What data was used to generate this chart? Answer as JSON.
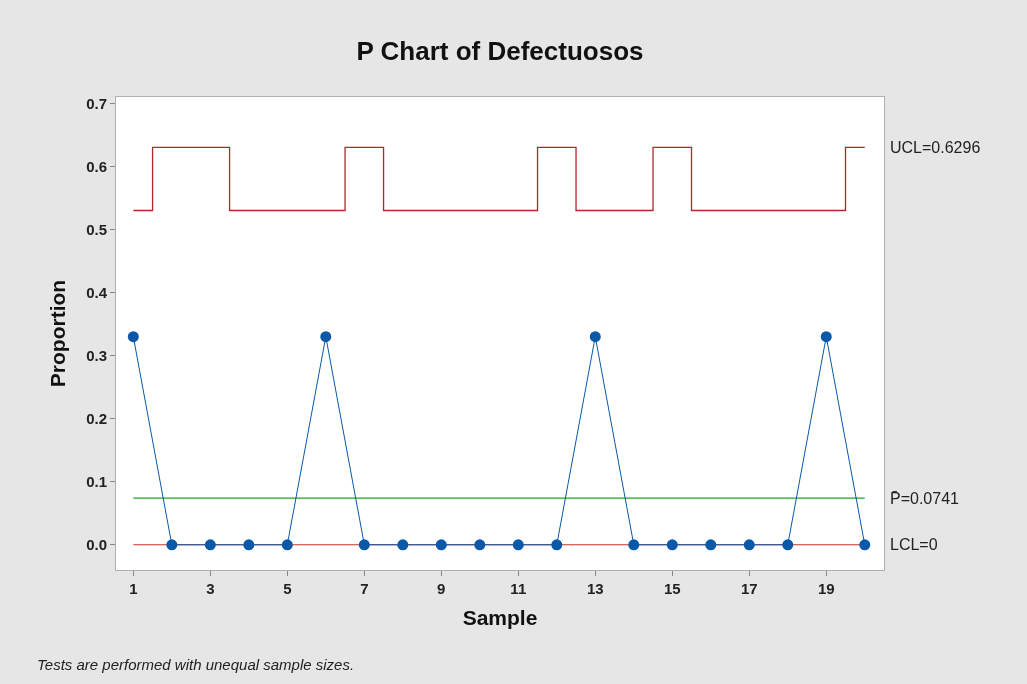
{
  "chart_data": {
    "type": "line",
    "title": "P Chart of Defectuosos",
    "xlabel": "Sample",
    "ylabel": "Proportion",
    "x": [
      1,
      2,
      3,
      4,
      5,
      6,
      7,
      8,
      9,
      10,
      11,
      12,
      13,
      14,
      15,
      16,
      17,
      18,
      19,
      20
    ],
    "series": [
      {
        "color": "#0a58a8",
        "marker": "circle",
        "values": [
          0.33,
          0,
          0,
          0,
          0,
          0.33,
          0,
          0,
          0,
          0,
          0,
          0,
          0.33,
          0,
          0,
          0,
          0,
          0,
          0.33,
          0
        ]
      },
      {
        "type": "step",
        "name": "UCL=0.6296",
        "color": "#b5262b",
        "marker": "none",
        "values": [
          0.53,
          0.63,
          0.63,
          0.53,
          0.53,
          0.53,
          0.63,
          0.53,
          0.53,
          0.53,
          0.53,
          0.63,
          0.53,
          0.53,
          0.63,
          0.53,
          0.53,
          0.53,
          0.53,
          0.63
        ]
      }
    ],
    "ref_lines": [
      {
        "axis": "y",
        "value": 0.0741,
        "label": "P̄=0.0741",
        "color": "#22a022"
      },
      {
        "axis": "y",
        "value": 0,
        "label": "LCL=0",
        "color": "#c0392b"
      }
    ],
    "xlim": [
      0.55,
      20.5
    ],
    "xticks": [
      1,
      3,
      5,
      7,
      9,
      11,
      13,
      15,
      17,
      19
    ],
    "ylim": [
      -0.04,
      0.71
    ],
    "yticks": [
      {
        "value": 0,
        "label": "0.0"
      },
      {
        "value": 0.1,
        "label": "0.1"
      },
      {
        "value": 0.2,
        "label": "0.2"
      },
      {
        "value": 0.3,
        "label": "0.3"
      },
      {
        "value": 0.4,
        "label": "0.4"
      },
      {
        "value": 0.5,
        "label": "0.5"
      },
      {
        "value": 0.6,
        "label": "0.6"
      },
      {
        "value": 0.7,
        "label": "0.7"
      }
    ],
    "grid": false,
    "legend": false,
    "line_style": "solid",
    "annotations": [
      "Tests are performed with unequal sample sizes."
    ]
  }
}
